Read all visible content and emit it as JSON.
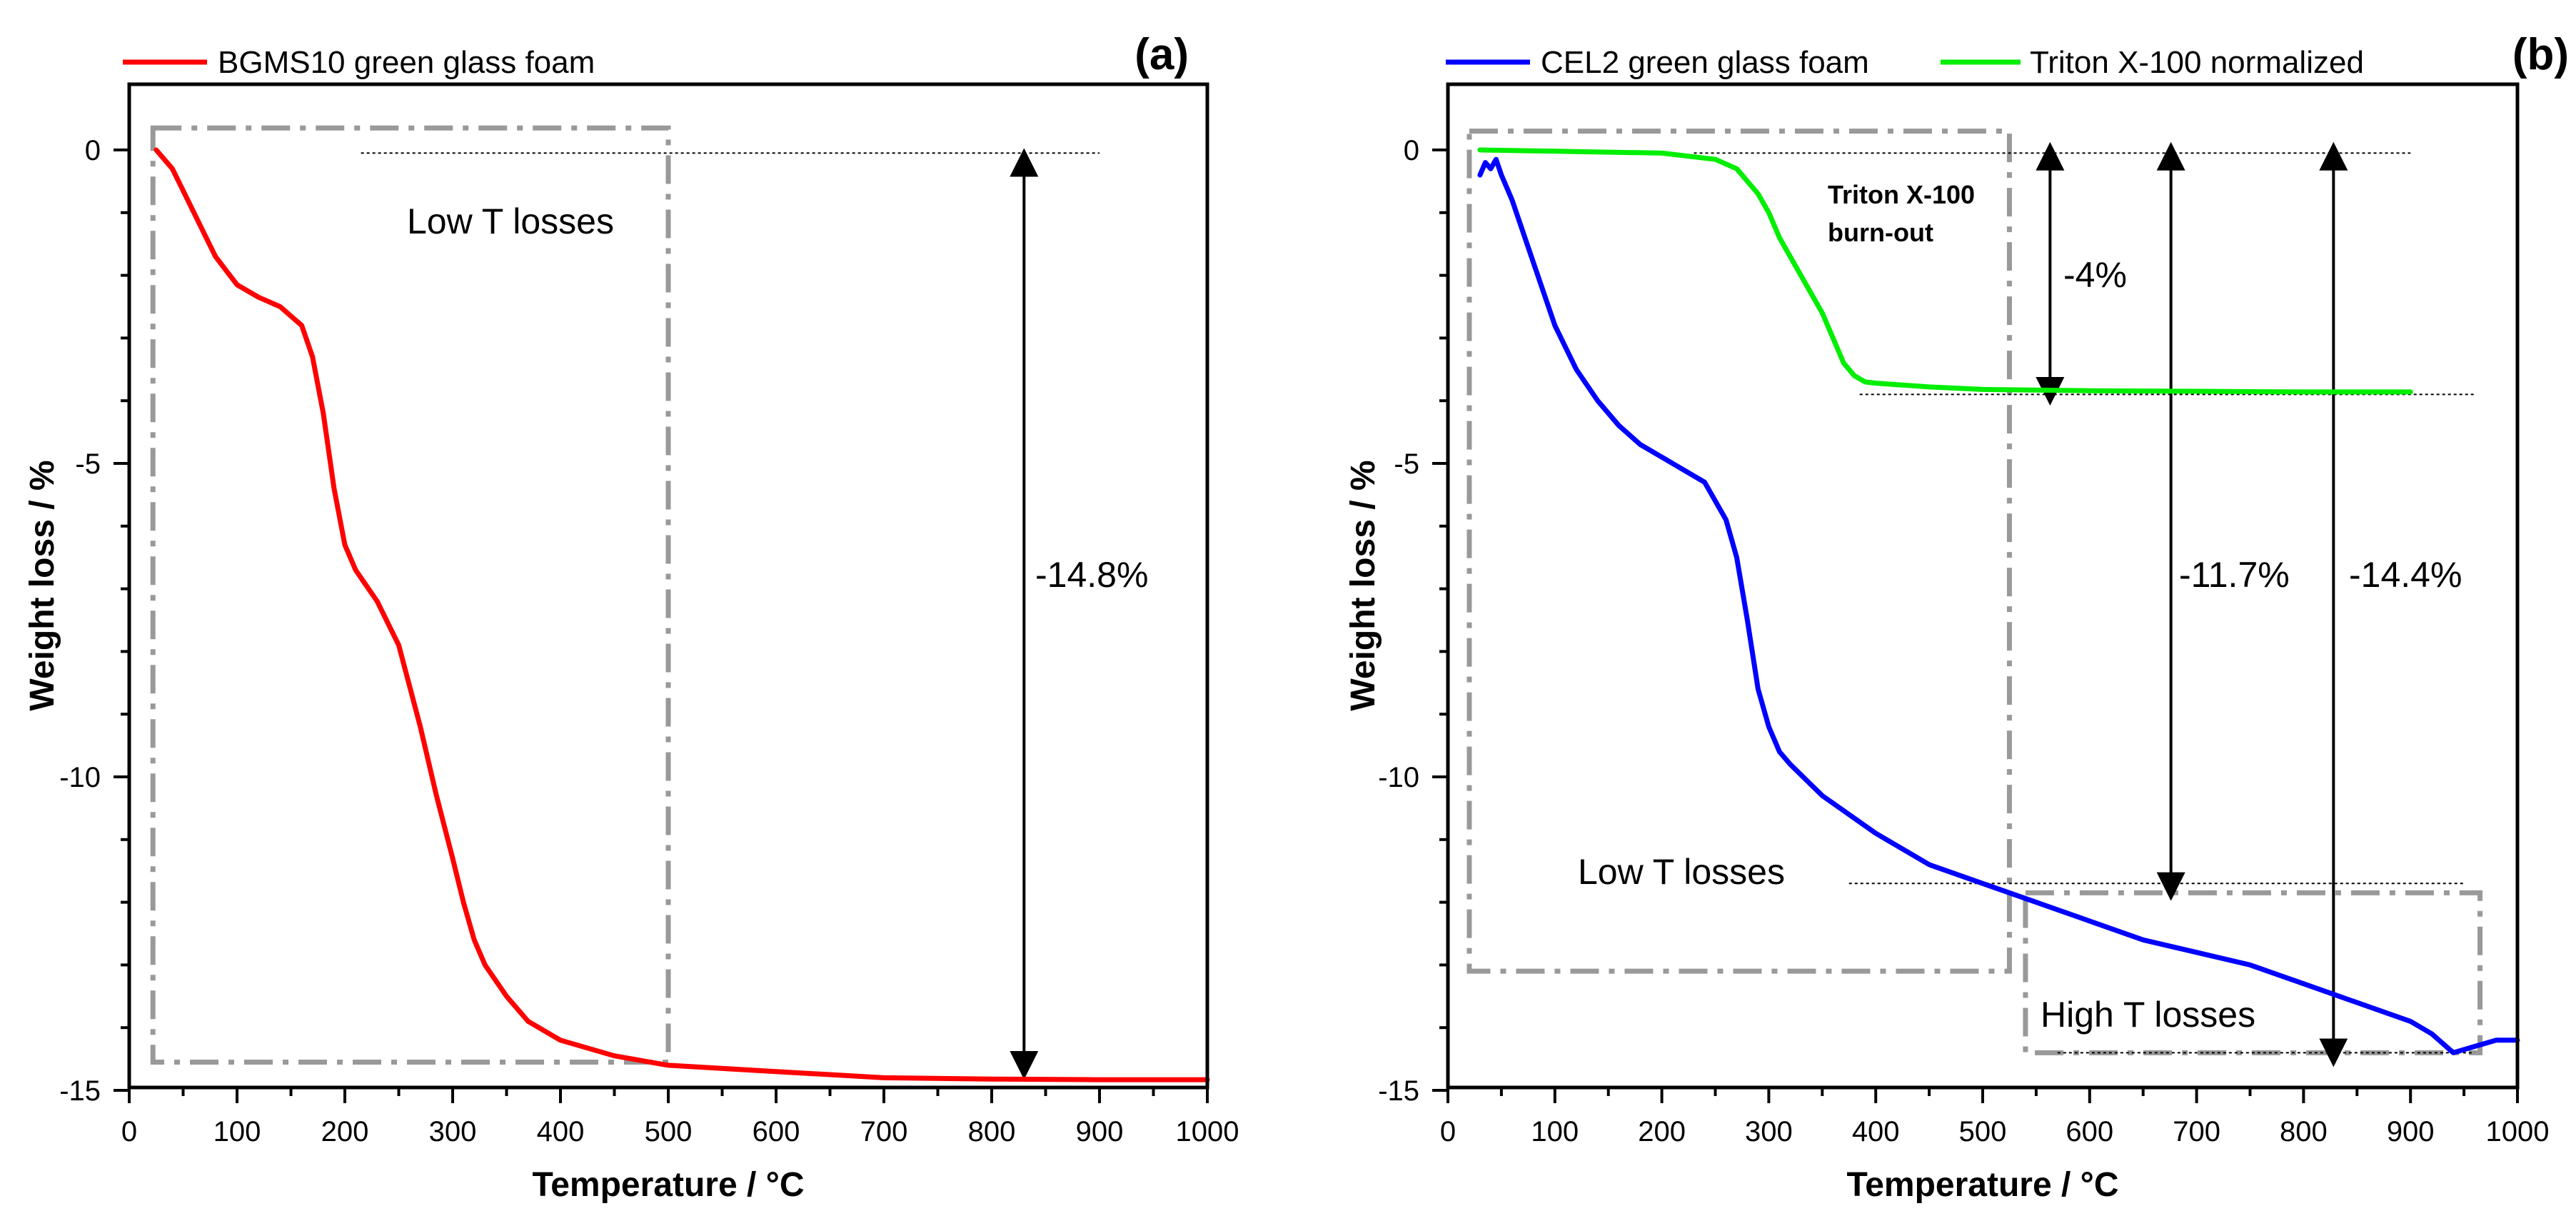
{
  "chart_data": [
    {
      "type": "line",
      "panel_label": "(a)",
      "xlabel": "Temperature / °C",
      "ylabel": "Weight loss / %",
      "xlim": [
        0,
        1000
      ],
      "ylim": [
        -15,
        0.8
      ],
      "x_ticks": [
        0,
        100,
        200,
        300,
        400,
        500,
        600,
        700,
        800,
        900,
        1000
      ],
      "y_ticks": [
        0,
        -5,
        -10,
        -15
      ],
      "legend_placement": "top-left",
      "series": [
        {
          "name": "BGMS10 green glass foam",
          "color": "#ff0000",
          "x": [
            25,
            40,
            60,
            80,
            100,
            120,
            140,
            160,
            170,
            180,
            190,
            200,
            210,
            230,
            250,
            270,
            285,
            300,
            310,
            320,
            330,
            350,
            370,
            400,
            450,
            500,
            600,
            700,
            800,
            900,
            1000
          ],
          "y": [
            0,
            -0.3,
            -1.0,
            -1.7,
            -2.15,
            -2.35,
            -2.5,
            -2.8,
            -3.3,
            -4.2,
            -5.4,
            -6.3,
            -6.7,
            -7.2,
            -7.9,
            -9.2,
            -10.3,
            -11.3,
            -12.0,
            -12.6,
            -13.0,
            -13.5,
            -13.9,
            -14.2,
            -14.45,
            -14.6,
            -14.7,
            -14.8,
            -14.82,
            -14.83,
            -14.83
          ]
        }
      ],
      "annotations": [
        {
          "text": "Low T losses"
        },
        {
          "text": "-14.8%"
        }
      ]
    },
    {
      "type": "line",
      "panel_label": "(b)",
      "xlabel": "Temperature / °C",
      "ylabel": "Weight loss / %",
      "xlim": [
        0,
        1000
      ],
      "ylim": [
        -15,
        0.8
      ],
      "x_ticks": [
        0,
        100,
        200,
        300,
        400,
        500,
        600,
        700,
        800,
        900,
        1000
      ],
      "y_ticks": [
        0,
        -5,
        -10,
        -15
      ],
      "legend_placement": "top",
      "series": [
        {
          "name": "CEL2 green glass foam",
          "color": "#0000ff",
          "x": [
            30,
            35,
            40,
            45,
            50,
            60,
            80,
            100,
            120,
            140,
            160,
            180,
            200,
            210,
            220,
            240,
            260,
            270,
            280,
            290,
            300,
            310,
            320,
            350,
            400,
            450,
            500,
            550,
            600,
            650,
            700,
            750,
            800,
            850,
            900,
            920,
            940,
            960,
            980,
            1000
          ],
          "y": [
            -0.4,
            -0.2,
            -0.3,
            -0.15,
            -0.4,
            -0.8,
            -1.8,
            -2.8,
            -3.5,
            -4.0,
            -4.4,
            -4.7,
            -4.9,
            -5.0,
            -5.1,
            -5.3,
            -5.9,
            -6.5,
            -7.5,
            -8.6,
            -9.2,
            -9.6,
            -9.8,
            -10.3,
            -10.9,
            -11.4,
            -11.7,
            -12.0,
            -12.3,
            -12.6,
            -12.8,
            -13.0,
            -13.3,
            -13.6,
            -13.9,
            -14.1,
            -14.4,
            -14.3,
            -14.2,
            -14.2
          ]
        },
        {
          "name": "Triton X-100 normalized",
          "color": "#00ee00",
          "x": [
            30,
            100,
            200,
            250,
            270,
            290,
            300,
            310,
            330,
            350,
            360,
            370,
            380,
            390,
            400,
            450,
            500,
            600,
            700,
            800,
            900
          ],
          "y": [
            0,
            -0.02,
            -0.05,
            -0.15,
            -0.3,
            -0.7,
            -1.0,
            -1.4,
            -2.0,
            -2.6,
            -3.0,
            -3.4,
            -3.6,
            -3.7,
            -3.72,
            -3.78,
            -3.82,
            -3.84,
            -3.85,
            -3.86,
            -3.86
          ]
        }
      ],
      "annotations": [
        {
          "text": "Triton X-100 burn-out",
          "lines": [
            "Triton X-100",
            "burn-out"
          ]
        },
        {
          "text": "-4%"
        },
        {
          "text": "-11.7%"
        },
        {
          "text": "-14.4%"
        },
        {
          "text": "Low T losses"
        },
        {
          "text": "High T losses"
        }
      ]
    }
  ]
}
